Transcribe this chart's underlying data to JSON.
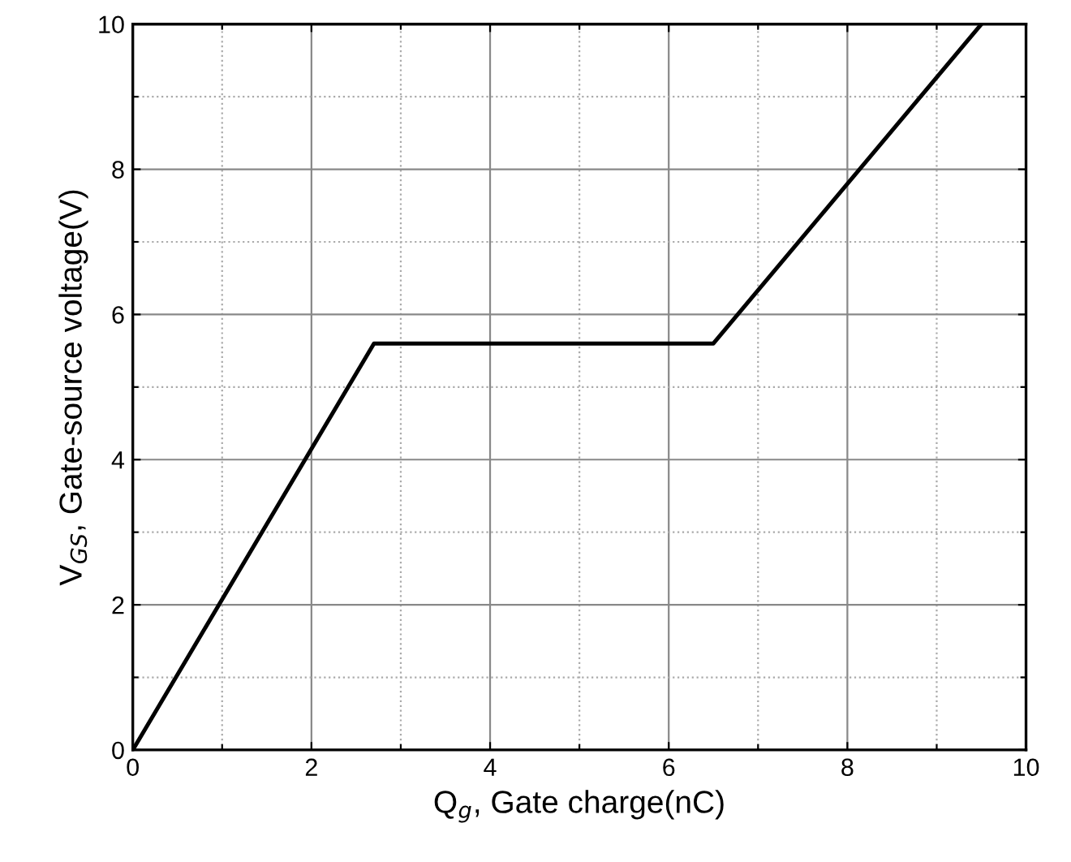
{
  "chart_data": {
    "type": "line",
    "xlabel": "Q$_{g}$, Gate charge(nC)",
    "ylabel": "V$_{GS}$, Gate-source voltage(V)",
    "x": [
      0,
      2.7,
      6.5,
      9.5
    ],
    "series": [
      {
        "color": "#000000",
        "values": [
          0,
          5.6,
          5.6,
          10
        ]
      }
    ],
    "xlim": [
      0,
      10
    ],
    "ylim": [
      0,
      10
    ],
    "xticks": [
      0,
      {
        "value": 1,
        "label": null
      },
      2,
      {
        "value": 3,
        "label": null
      },
      4,
      {
        "value": 5,
        "label": null
      },
      6,
      {
        "value": 7,
        "label": null
      },
      8,
      {
        "value": 9,
        "label": null
      },
      10
    ],
    "yticks": [
      0,
      {
        "value": 1,
        "label": null
      },
      2,
      {
        "value": 3,
        "label": null
      },
      4,
      {
        "value": 5,
        "label": null
      },
      6,
      {
        "value": 7,
        "label": null
      },
      8,
      {
        "value": 9,
        "label": null
      },
      10
    ],
    "grid": true,
    "line_style": "solid",
    "marker": "none"
  }
}
